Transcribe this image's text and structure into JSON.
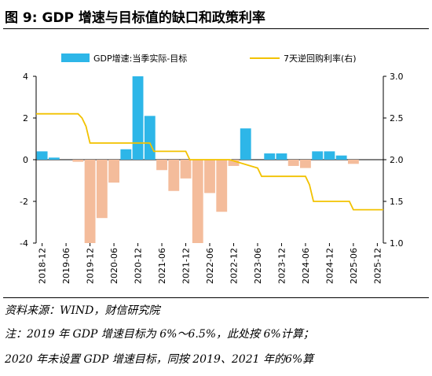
{
  "header": {
    "title": "图 9:  GDP 增速与目标值的缺口和政策利率"
  },
  "footer": {
    "source": "资料来源：WIND，财信研究院",
    "note1": "注：2019 年 GDP 增速目标为 6%～6.5%，此处按 6%计算；",
    "note2": "2020 年未设置 GDP 增速目标，同按 2019、2021 年的6%算"
  },
  "colors": {
    "positive_bar": "#2DB6E8",
    "negative_bar": "#F4BC9B",
    "line": "#F2C200"
  },
  "chart_data": {
    "type": "bar",
    "categories": [
      "2018-12",
      "2019-03",
      "2019-06",
      "2019-09",
      "2019-12",
      "2020-03",
      "2020-06",
      "2020-09",
      "2020-12",
      "2021-03",
      "2021-06",
      "2021-09",
      "2021-12",
      "2022-03",
      "2022-06",
      "2022-09",
      "2022-12",
      "2023-03",
      "2023-06",
      "2023-09",
      "2023-12",
      "2024-03",
      "2024-06",
      "2024-09",
      "2024-12",
      "2025-03",
      "2025-06",
      "2025-09",
      "2025-12"
    ],
    "x_tick_labels": [
      "2018-12",
      "2019-06",
      "2019-12",
      "2020-06",
      "2020-12",
      "2021-06",
      "2021-12",
      "2022-06",
      "2022-12",
      "2023-06",
      "2023-12",
      "2024-06",
      "2024-12",
      "2025-06",
      "2025-12"
    ],
    "series": [
      {
        "name": "GDP增速:当季实际-目标",
        "axis": "left",
        "values": [
          0.4,
          0.1,
          0.0,
          -0.1,
          -4.0,
          -2.8,
          -1.1,
          0.5,
          4.0,
          2.1,
          -0.5,
          -1.5,
          -0.9,
          -4.0,
          -1.6,
          -2.5,
          -0.3,
          1.5,
          0.0,
          0.3,
          0.3,
          -0.3,
          -0.4,
          0.4,
          0.4,
          0.2,
          -0.2,
          0.0,
          0.0
        ]
      },
      {
        "name": "7天逆回购利率(右)",
        "axis": "right",
        "type": "line",
        "points": [
          [
            "2018-12",
            2.55
          ],
          [
            "2019-09",
            2.55
          ],
          [
            "2019-10",
            2.5
          ],
          [
            "2019-11",
            2.4
          ],
          [
            "2019-12",
            2.2
          ],
          [
            "2021-01",
            2.2
          ],
          [
            "2021-03",
            2.2
          ],
          [
            "2021-04",
            2.1
          ],
          [
            "2021-12",
            2.1
          ],
          [
            "2022-01",
            2.0
          ],
          [
            "2022-08",
            2.0
          ],
          [
            "2022-09",
            2.0
          ],
          [
            "2022-11",
            2.0
          ],
          [
            "2023-06",
            1.9
          ],
          [
            "2023-07",
            1.8
          ],
          [
            "2024-06",
            1.8
          ],
          [
            "2024-07",
            1.7
          ],
          [
            "2024-08",
            1.5
          ],
          [
            "2025-05",
            1.5
          ],
          [
            "2025-06",
            1.4
          ],
          [
            "2025-12",
            1.4
          ]
        ]
      }
    ],
    "ylim_left": [
      -4,
      4
    ],
    "yticks_left": [
      -4,
      -2,
      0,
      2,
      4
    ],
    "ylim_right": [
      1.0,
      3.0
    ],
    "yticks_right": [
      "1.0",
      "1.5",
      "2.0",
      "2.5",
      "3.0"
    ],
    "legend": "top"
  }
}
